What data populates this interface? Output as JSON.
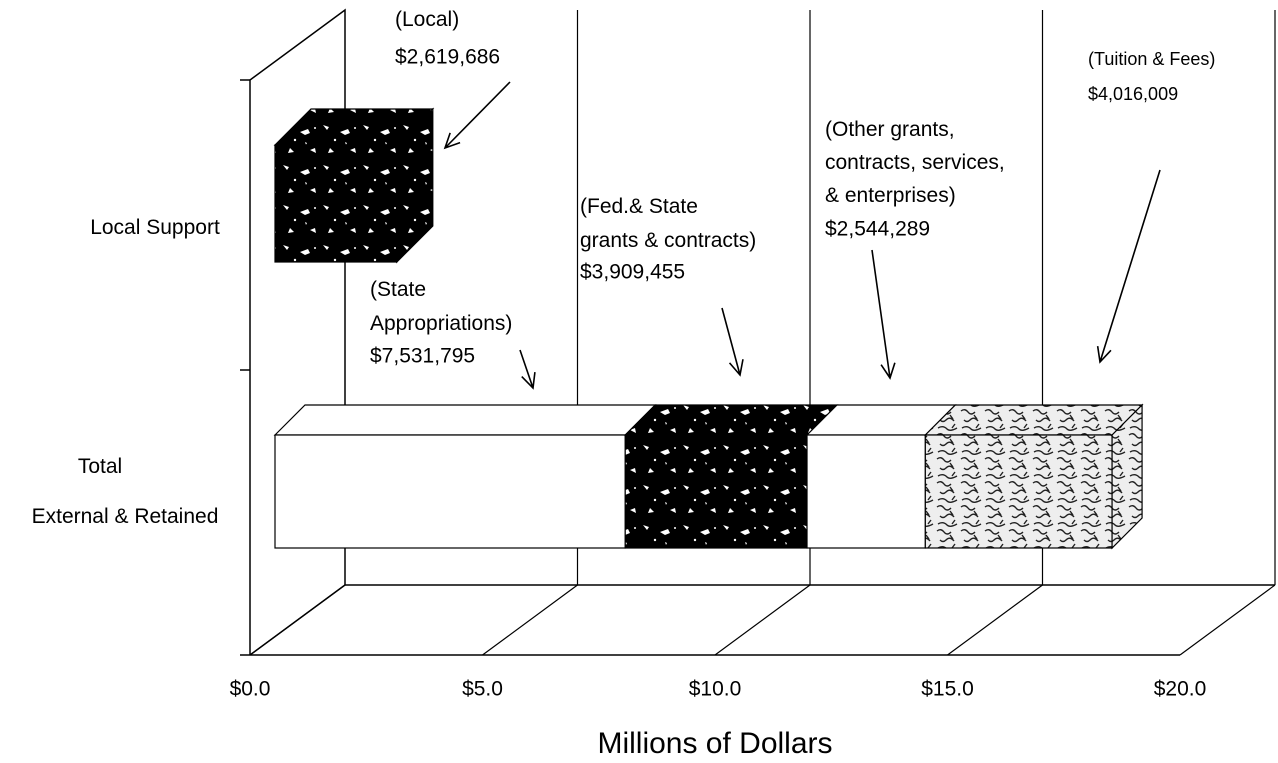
{
  "chart_data": {
    "type": "bar3d_stacked_horizontal",
    "categories": [
      "Local Support",
      "Total\nExternal & Retained"
    ],
    "series": [
      {
        "name": "(Local)",
        "color": "#000000",
        "values": [
          2.619686,
          null
        ],
        "value_labels": [
          "$2,619,686",
          null
        ]
      },
      {
        "name": "(State\nAppropriations)",
        "color": "#ffffff",
        "values": [
          null,
          7.531795
        ],
        "value_labels": [
          null,
          "$7,531,795"
        ]
      },
      {
        "name": "(Fed.& State\ngrants & contracts)",
        "color": "#000000",
        "values": [
          null,
          3.909455
        ],
        "value_labels": [
          null,
          "$3,909,455"
        ]
      },
      {
        "name": "(Other grants,\ncontracts, services,\n& enterprises)",
        "color": "#ffffff",
        "values": [
          null,
          2.544289
        ],
        "value_labels": [
          null,
          "$2,544,289"
        ]
      },
      {
        "name": "(Tuition & Fees)",
        "color": "#bbbbbb",
        "values": [
          null,
          4.016009
        ],
        "value_labels": [
          null,
          "$4,016,009"
        ]
      }
    ],
    "xlim": [
      0,
      20
    ],
    "xticks": [
      {
        "value": 0,
        "label": "$0.0"
      },
      {
        "value": 5,
        "label": "$5.0"
      },
      {
        "value": 10,
        "label": "$10.0"
      },
      {
        "value": 15,
        "label": "$15.0"
      },
      {
        "value": 20,
        "label": "$20.0"
      }
    ],
    "xlabel": "Millions of Dollars",
    "grid": true
  }
}
